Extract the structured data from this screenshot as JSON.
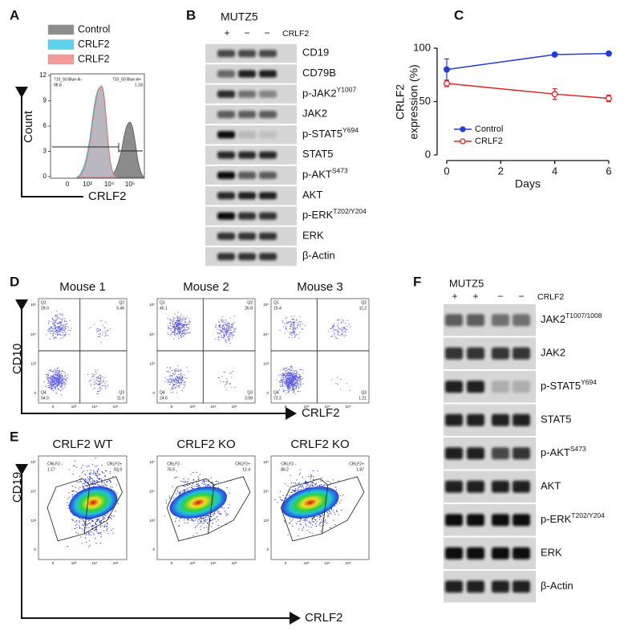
{
  "A": {
    "letter": "A",
    "legend": [
      {
        "name": "Control",
        "color": "#8c8c8c"
      },
      {
        "name": "CRLF2",
        "color": "#5ed3ea"
      },
      {
        "name": "CRLF2",
        "color": "#f39a9a"
      }
    ],
    "gate_left": {
      "name": "710_50 Blue-A-",
      "value": 98.8
    },
    "gate_right": {
      "name": "710_50 Blue-A+",
      "value": 1.18
    },
    "yticks": [
      12,
      9,
      6,
      3,
      0
    ],
    "xticks": [
      "0",
      "10³",
      "10⁴",
      "10⁵"
    ],
    "ylabel": "Count",
    "xlabel": "CRLF2"
  },
  "B": {
    "letter": "B",
    "cell_line": "MUTZ5",
    "lanes": [
      "+",
      "−",
      "−"
    ],
    "lane_label": "CRLF2",
    "rows": [
      {
        "name": "CD19"
      },
      {
        "name": "CD79B"
      },
      {
        "name": "p-JAK2",
        "sup": "Y1007"
      },
      {
        "name": "JAK2"
      },
      {
        "name": "p-STAT5",
        "sup": "Y694"
      },
      {
        "name": "STAT5"
      },
      {
        "name": "p-AKT",
        "sup": "S473"
      },
      {
        "name": "AKT"
      },
      {
        "name": "p-ERK",
        "sup": "T202/Y204"
      },
      {
        "name": "ERK"
      },
      {
        "name": "β-Actin"
      }
    ]
  },
  "chart_data": {
    "type": "line",
    "letter": "C",
    "ylabel": [
      "CRLF2",
      "expression (%)"
    ],
    "xlabel": "Days",
    "x": [
      0,
      4,
      6
    ],
    "xlim": [
      0,
      6
    ],
    "xticks": [
      0,
      2,
      4,
      6
    ],
    "ylim": [
      0,
      100
    ],
    "yticks": [
      0,
      50,
      100
    ],
    "series": [
      {
        "name": "Control",
        "color": "#1f3fd6",
        "marker": "filled",
        "values": [
          80,
          94,
          95
        ],
        "errors": [
          10,
          null,
          null
        ]
      },
      {
        "name": "CRLF2",
        "color": "#e02222",
        "marker": "open",
        "values": [
          67,
          57,
          53
        ],
        "errors": [
          3,
          5,
          3
        ]
      }
    ]
  },
  "D": {
    "letter": "D",
    "ylabel": "CD10",
    "xlabel": "CRLF2",
    "quadrant_names": [
      "Q1",
      "Q2",
      "Q3",
      "Q4"
    ],
    "xticks": [
      "0",
      "10³",
      "10⁴",
      "10⁵"
    ],
    "yticks": [
      "10⁵",
      "10⁴",
      "10³",
      "0"
    ],
    "plots": [
      {
        "title": "Mouse 1",
        "values": [
          29,
          5.46,
          11.6,
          54
        ],
        "value_labels": [
          "29.0",
          "5.46",
          "11.6",
          "54.0"
        ]
      },
      {
        "title": "Mouse 2",
        "values": [
          45.1,
          26.8,
          3.58,
          24.6
        ],
        "value_labels": [
          "45.1",
          "26.8",
          "3.58",
          "24.6"
        ]
      },
      {
        "title": "Mouse 3",
        "values": [
          15.4,
          11.2,
          1.21,
          72.2
        ],
        "value_labels": [
          "15.4",
          "11.2",
          "1.21",
          "72.2"
        ]
      }
    ]
  },
  "E": {
    "letter": "E",
    "ylabel": "CD19",
    "xlabel": "CRLF2",
    "gate_names": [
      "CRLF2 -",
      "CRLF2+"
    ],
    "xticks": [
      "0",
      "10³",
      "10⁴",
      "10⁵"
    ],
    "yticks": [
      "10⁵",
      "10⁴",
      "10³",
      "0"
    ],
    "plots": [
      {
        "title": "CRLF2 WT",
        "values": [
          1.17,
          83.9
        ]
      },
      {
        "title": "CRLF2 KO",
        "values": [
          76.5,
          12.4
        ]
      },
      {
        "title": "CRLF2 KO",
        "values": [
          86.2,
          1.87
        ]
      }
    ]
  },
  "F": {
    "letter": "F",
    "cell_line": "MUTZ5",
    "lanes": [
      "+",
      "+",
      "−",
      "−"
    ],
    "lane_label": "CRLF2",
    "rows": [
      {
        "name": "JAK2",
        "sup": "T1007/1008"
      },
      {
        "name": "JAK2"
      },
      {
        "name": "p-STAT5",
        "sup": "Y694"
      },
      {
        "name": "STAT5"
      },
      {
        "name": "p-AKT",
        "sup": "S473"
      },
      {
        "name": "AKT"
      },
      {
        "name": "p-ERK",
        "sup": "T202/Y204"
      },
      {
        "name": "ERK"
      },
      {
        "name": "β-Actin"
      }
    ]
  }
}
